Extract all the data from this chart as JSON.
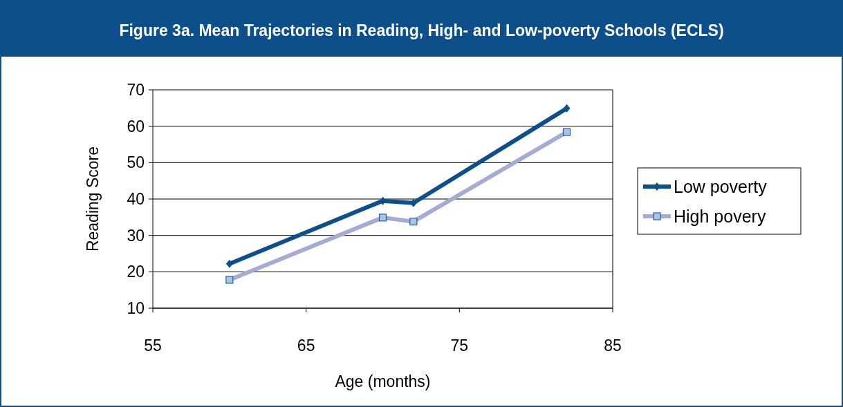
{
  "chart_data": {
    "type": "line",
    "title": "Figure 3a. Mean Trajectories in Reading, High- and Low-poverty Schools (ECLS)",
    "xlabel": "Age (months)",
    "ylabel": "Reading Score",
    "x": [
      60,
      70,
      72,
      82
    ],
    "series": [
      {
        "name": "Low poverty",
        "color": "#0d4f8b",
        "marker": "diamond",
        "values": [
          22.2,
          39.5,
          38.9,
          64.9
        ]
      },
      {
        "name": "High povery",
        "color": "#a4acd6",
        "marker": "square",
        "values": [
          17.8,
          34.9,
          33.8,
          58.4
        ]
      }
    ],
    "xlim": [
      55,
      85
    ],
    "xticks": [
      55,
      65,
      75,
      85
    ],
    "ylim": [
      10,
      70
    ],
    "yticks": [
      10,
      20,
      30,
      40,
      50,
      60,
      70
    ],
    "grid": "y",
    "legend": "right"
  }
}
